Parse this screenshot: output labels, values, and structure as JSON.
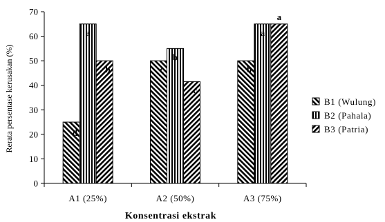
{
  "chart_data": {
    "type": "bar",
    "title": "",
    "xlabel": "Konsentrasi ekstrak",
    "ylabel": "Rerata persentase kerusakan (%)",
    "ylim": [
      0,
      70
    ],
    "yticks": [
      0,
      10,
      20,
      30,
      40,
      50,
      60,
      70
    ],
    "grid": false,
    "legend_position": "right",
    "categories": [
      "A1 (25%)",
      "A2 (50%)",
      "A3 (75%)"
    ],
    "series": [
      {
        "name": "B1 (Wulung)",
        "pattern": "diagonal-back",
        "values": [
          25,
          50,
          50
        ],
        "labels": [
          "d",
          "c",
          "b"
        ]
      },
      {
        "name": "B2 (Pahala)",
        "pattern": "vertical",
        "values": [
          65,
          55,
          65
        ],
        "labels": [
          "a",
          "b",
          "a"
        ]
      },
      {
        "name": "B3 (Patria)",
        "pattern": "diagonal-forward",
        "values": [
          50,
          41.5,
          65
        ],
        "labels": [
          "b",
          "c",
          "a"
        ]
      }
    ]
  }
}
